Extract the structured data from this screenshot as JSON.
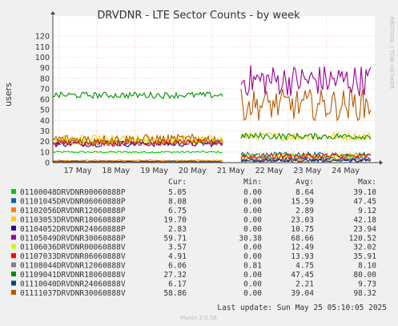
{
  "chart_data": {
    "type": "line",
    "title": "DRVDNR - LTE Sector Counts - by week",
    "ylabel": "users",
    "ylim": [
      0,
      130
    ],
    "yticks": [
      0,
      10,
      20,
      30,
      40,
      50,
      60,
      70,
      80,
      90,
      100,
      110,
      120
    ],
    "xticks": [
      "17 May",
      "18 May",
      "19 May",
      "20 May",
      "21 May",
      "22 May",
      "23 May",
      "24 May"
    ],
    "grid": true,
    "side_label": "RRDTOOL / TOBI OETIKER",
    "legend_headers": [
      "Cur:",
      "Min:",
      "Avg:",
      "Max:"
    ],
    "series": [
      {
        "name": "01100048DRVDNR00060888P",
        "color": "#00cc00",
        "cur": "5.05",
        "min": "0.00",
        "avg": "8.64",
        "max": "39.10"
      },
      {
        "name": "01101045DRVDNR06060888P",
        "color": "#0066b3",
        "cur": "8.08",
        "min": "0.00",
        "avg": "15.59",
        "max": "47.45"
      },
      {
        "name": "01102056DRVDNR12060888P",
        "color": "#ff8000",
        "cur": "6.75",
        "min": "0.00",
        "avg": "2.89",
        "max": "9.12"
      },
      {
        "name": "01103053DRVDNR18060888P",
        "color": "#ffcc00",
        "cur": "19.70",
        "min": "0.00",
        "avg": "23.03",
        "max": "42.18"
      },
      {
        "name": "01104052DRVDNR24060888P",
        "color": "#330099",
        "cur": "2.83",
        "min": "0.00",
        "avg": "10.75",
        "max": "23.94"
      },
      {
        "name": "01105049DRVDNR30060888P",
        "color": "#990099",
        "cur": "59.71",
        "min": "30.38",
        "avg": "68.66",
        "max": "120.52"
      },
      {
        "name": "01106036DRVDNR00060888V",
        "color": "#ccff00",
        "cur": "3.57",
        "min": "0.00",
        "avg": "12.49",
        "max": "32.02"
      },
      {
        "name": "01107033DRVDNR06060888V",
        "color": "#ff0000",
        "cur": "4.91",
        "min": "0.00",
        "avg": "13.93",
        "max": "35.91"
      },
      {
        "name": "01108044DRVDNR12060888V",
        "color": "#808080",
        "cur": "6.06",
        "min": "0.81",
        "avg": "4.75",
        "max": "8.10"
      },
      {
        "name": "01109041DRVDNR18060888V",
        "color": "#008f00",
        "cur": "27.32",
        "min": "0.00",
        "avg": "47.45",
        "max": "80.00"
      },
      {
        "name": "01110040DRVDNR24060888V",
        "color": "#00487d",
        "cur": "6.17",
        "min": "0.00",
        "avg": "2.21",
        "max": "9.73"
      },
      {
        "name": "01111037DRVDNR30060888V",
        "color": "#b35a00",
        "cur": "58.86",
        "min": "0.00",
        "avg": "39.04",
        "max": "98.32"
      }
    ],
    "last_update": "Last update: Sun May 25 05:10:05 2025",
    "footer": "Munin 2.0.56"
  }
}
